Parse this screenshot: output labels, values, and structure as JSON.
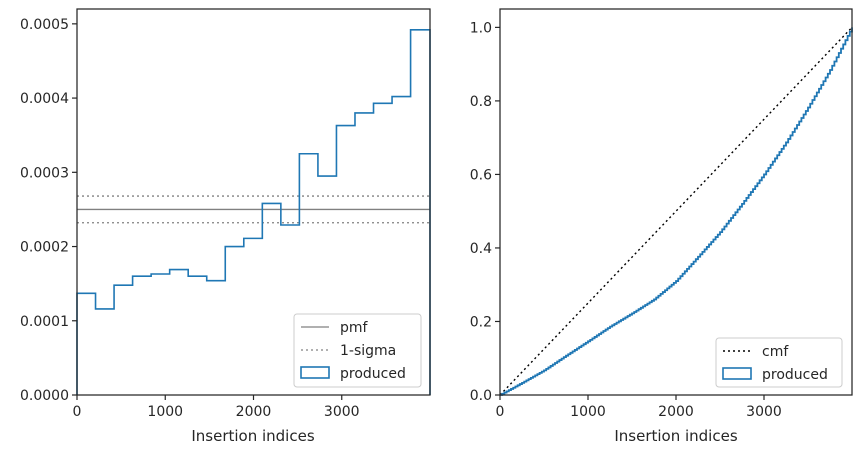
{
  "chart_data": [
    {
      "type": "line",
      "xlabel": "Insertion indices",
      "ylabel": "",
      "xlim": [
        0,
        4000
      ],
      "ylim": [
        0,
        0.00052
      ],
      "xticks": [
        0,
        1000,
        2000,
        3000
      ],
      "xtick_labels": [
        "0",
        "1000",
        "2000",
        "3000"
      ],
      "yticks": [
        0,
        0.0001,
        0.0002,
        0.0003,
        0.0004,
        0.0005
      ],
      "ytick_labels": [
        "0.0000",
        "0.0001",
        "0.0002",
        "0.0003",
        "0.0004",
        "0.0005"
      ],
      "grid": false,
      "legend_position": "bottom-right",
      "legend": [
        "pmf",
        "1-sigma",
        "produced"
      ],
      "series": [
        {
          "name": "pmf",
          "style": "solid",
          "color": "#808080",
          "y": 0.00025
        },
        {
          "name": "1-sigma",
          "style": "dotted",
          "color": "#808080",
          "y_values": [
            0.000268,
            0.000232
          ]
        },
        {
          "name": "produced",
          "style": "step",
          "color": "#1f77b4",
          "bin_edges": [
            0,
            210,
            420,
            630,
            840,
            1050,
            1260,
            1470,
            1680,
            1890,
            2100,
            2310,
            2520,
            2730,
            2940,
            3150,
            3360,
            3570,
            3780,
            4000
          ],
          "values": [
            0.000137,
            0.000116,
            0.000148,
            0.00016,
            0.000163,
            0.000169,
            0.00016,
            0.000154,
            0.0002,
            0.000211,
            0.000258,
            0.000229,
            0.000325,
            0.000295,
            0.000363,
            0.00038,
            0.000393,
            0.000402,
            0.000492
          ]
        }
      ]
    },
    {
      "type": "line",
      "xlabel": "Insertion indices",
      "ylabel": "",
      "xlim": [
        0,
        4000
      ],
      "ylim": [
        0,
        1.05
      ],
      "xticks": [
        0,
        1000,
        2000,
        3000
      ],
      "xtick_labels": [
        "0",
        "1000",
        "2000",
        "3000"
      ],
      "yticks": [
        0,
        0.2,
        0.4,
        0.6,
        0.8,
        1.0
      ],
      "ytick_labels": [
        "0.0",
        "0.2",
        "0.4",
        "0.6",
        "0.8",
        "1.0"
      ],
      "grid": false,
      "legend_position": "bottom-right",
      "legend": [
        "cmf",
        "produced"
      ],
      "series": [
        {
          "name": "cmf",
          "style": "dotted",
          "color": "#000000",
          "x": [
            0,
            4000
          ],
          "y": [
            0,
            1.0
          ]
        },
        {
          "name": "produced",
          "style": "step",
          "color": "#1f77b4",
          "x": [
            0,
            250,
            500,
            750,
            1000,
            1250,
            1500,
            1750,
            2000,
            2250,
            2500,
            2750,
            3000,
            3250,
            3500,
            3750,
            4000
          ],
          "y": [
            0,
            0.033,
            0.067,
            0.107,
            0.146,
            0.186,
            0.222,
            0.26,
            0.31,
            0.376,
            0.443,
            0.52,
            0.6,
            0.687,
            0.782,
            0.884,
            1.0
          ]
        }
      ]
    }
  ]
}
